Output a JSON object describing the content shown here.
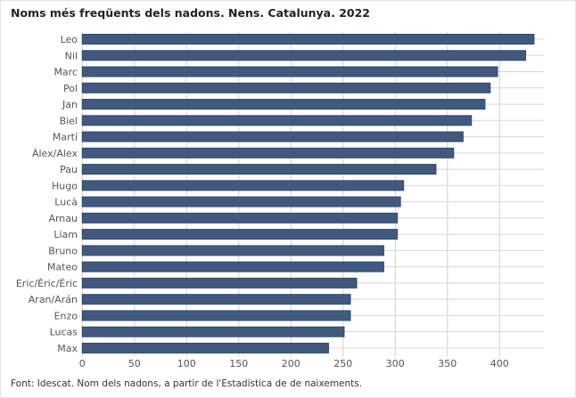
{
  "chart_data": {
    "type": "bar",
    "orientation": "horizontal",
    "title": "Noms més freqüents dels nadons. Nens. Catalunya. 2022",
    "categories": [
      "Leo",
      "Nil",
      "Marc",
      "Pol",
      "Jan",
      "Biel",
      "Martí",
      "Àlex/Alex",
      "Pau",
      "Hugo",
      "Lucà",
      "Arnau",
      "Liam",
      "Bruno",
      "Mateo",
      "Eric/Èric/Éric",
      "Aran/Arán",
      "Enzo",
      "Lucas",
      "Max"
    ],
    "values": [
      433,
      425,
      398,
      391,
      386,
      373,
      365,
      356,
      339,
      308,
      305,
      302,
      302,
      289,
      289,
      263,
      257,
      257,
      251,
      236
    ],
    "xlim": [
      0,
      440
    ],
    "xticks": [
      0,
      50,
      100,
      150,
      200,
      250,
      300,
      350,
      400
    ],
    "grid": true,
    "bar_color": "#42597d",
    "bar_edge_color": "#2c4a73",
    "source": "Font: Idescat. Nom dels nadons, a partir de l'Estadística de de naixements."
  }
}
